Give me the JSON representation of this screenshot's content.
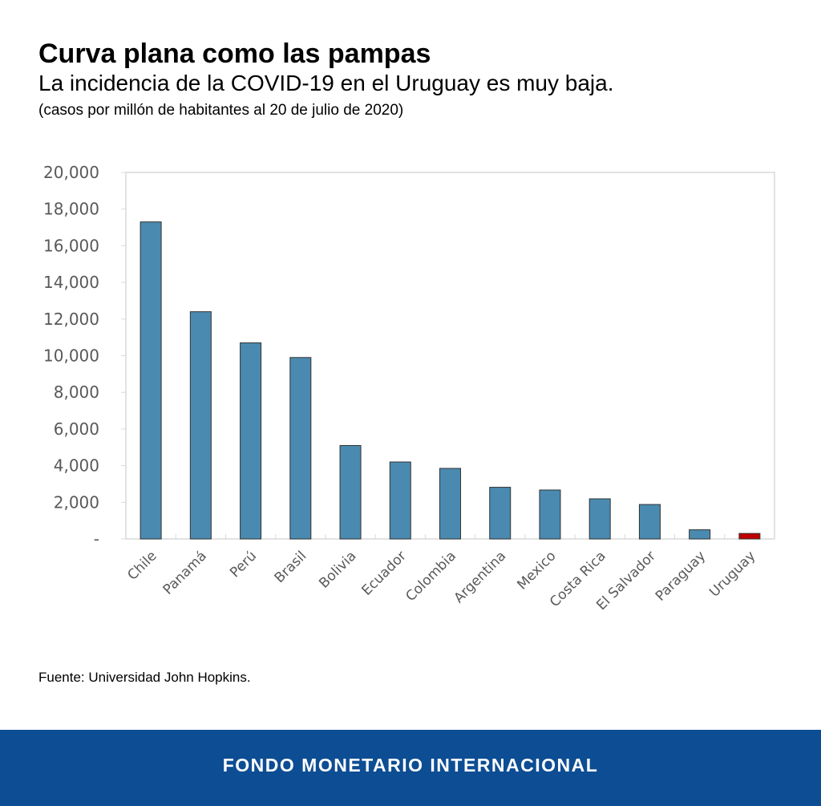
{
  "header": {
    "title": "Curva plana como las pampas",
    "subtitle": "La incidencia de la COVID-19 en el Uruguay es muy baja.",
    "note": "(casos por millón de habitantes al 20 de julio de 2020)"
  },
  "source": "Fuente: Universidad John Hopkins.",
  "footer": {
    "label": "FONDO MONETARIO INTERNACIONAL",
    "color": "#0d4d93"
  },
  "chart_data": {
    "type": "bar",
    "title": "",
    "xlabel": "",
    "ylabel": "",
    "ylim": [
      0,
      20000
    ],
    "yticks": [
      0,
      2000,
      4000,
      6000,
      8000,
      10000,
      12000,
      14000,
      16000,
      18000,
      20000
    ],
    "ytick_labels": [
      "-",
      "2,000",
      "4,000",
      "6,000",
      "8,000",
      "10,000",
      "12,000",
      "14,000",
      "16,000",
      "18,000",
      "20,000"
    ],
    "grid": false,
    "categories": [
      "Chile",
      "Panamá",
      "Perú",
      "Brasil",
      "Bolivia",
      "Ecuador",
      "Colombia",
      "Argentina",
      "Mexico",
      "Costa Rica",
      "El Salvador",
      "Paraguay",
      "Uruguay"
    ],
    "values": [
      17300,
      12400,
      10700,
      9900,
      5100,
      4200,
      3850,
      2820,
      2670,
      2190,
      1880,
      500,
      300
    ],
    "colors": {
      "default": "#4a8ab0",
      "highlight": "#c00000",
      "highlight_category": "Uruguay"
    }
  }
}
